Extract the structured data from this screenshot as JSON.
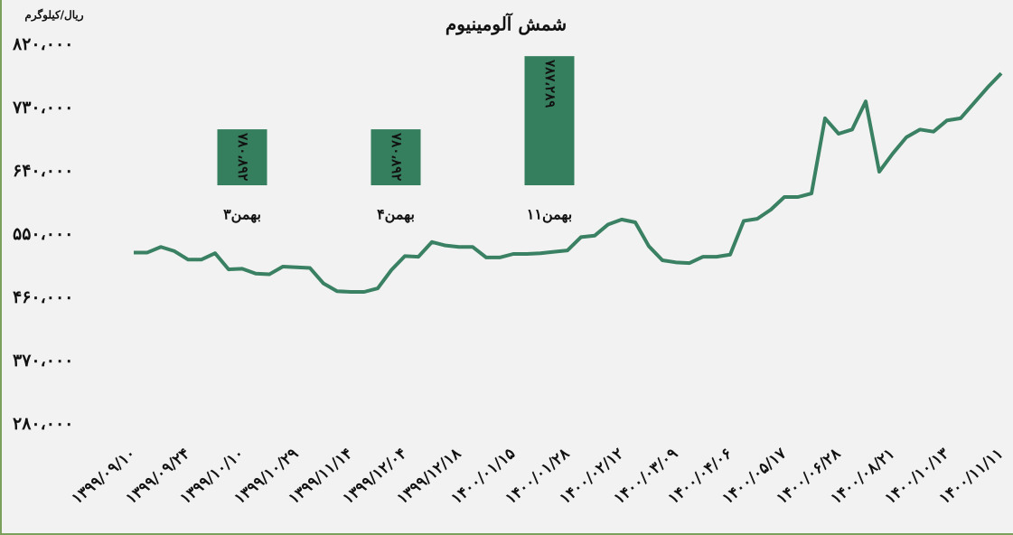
{
  "chart_data": [
    {
      "type": "line",
      "title": "شمش آلومینیوم",
      "y_label": "ریال/کیلوگرم",
      "color": "#3a8063",
      "categories": [
        "۱۳۹۹/۰۹/۱۰",
        null,
        null,
        null,
        "۱۳۹۹/۰۹/۲۴",
        null,
        null,
        null,
        "۱۳۹۹/۱۰/۱۰",
        null,
        null,
        null,
        "۱۳۹۹/۱۰/۲۹",
        null,
        null,
        null,
        "۱۳۹۹/۱۱/۱۴",
        null,
        null,
        null,
        "۱۳۹۹/۱۲/۰۴",
        null,
        null,
        null,
        "۱۳۹۹/۱۲/۱۸",
        null,
        null,
        null,
        "۱۴۰۰/۰۱/۱۵",
        null,
        null,
        null,
        "۱۴۰۰/۰۱/۲۸",
        null,
        null,
        null,
        "۱۴۰۰/۰۲/۱۲",
        null,
        null,
        null,
        "۱۴۰۰/۰۳/۰۹",
        null,
        null,
        null,
        "۱۴۰۰/۰۴/۰۶",
        null,
        null,
        null,
        "۱۴۰۰/۰۵/۱۷",
        null,
        null,
        null,
        "۱۴۰۰/۰۶/۲۸",
        null,
        null,
        null,
        "۱۴۰۰/۰۸/۲۱",
        null,
        null,
        null,
        "۱۴۰۰/۱۰/۱۳",
        null,
        null,
        null,
        "۱۴۰۰/۱۱/۱۱"
      ],
      "values": [
        525000,
        525000,
        533000,
        527000,
        515000,
        515000,
        524000,
        501000,
        502000,
        495000,
        494000,
        505000,
        504000,
        503000,
        481000,
        470000,
        469000,
        469000,
        474000,
        500000,
        520000,
        519000,
        540000,
        535000,
        533000,
        533000,
        518000,
        518000,
        523000,
        523000,
        524000,
        526000,
        528000,
        547000,
        549000,
        565000,
        572000,
        568000,
        534000,
        514000,
        511000,
        510000,
        519000,
        519000,
        522000,
        570000,
        573000,
        586000,
        604000,
        604000,
        609000,
        716000,
        694000,
        700000,
        740000,
        640000,
        666000,
        689000,
        700000,
        697000,
        713000,
        716000,
        738000,
        760000,
        780000
      ],
      "ylim": [
        280000,
        820000
      ],
      "yticks": [
        {
          "value": 280000,
          "label": "۲۸۰،۰۰۰"
        },
        {
          "value": 370000,
          "label": "۳۷۰،۰۰۰"
        },
        {
          "value": 460000,
          "label": "۴۶۰،۰۰۰"
        },
        {
          "value": 550000,
          "label": "۵۵۰،۰۰۰"
        },
        {
          "value": 640000,
          "label": "۶۴۰،۰۰۰"
        },
        {
          "value": 730000,
          "label": "۷۳۰،۰۰۰"
        },
        {
          "value": 820000,
          "label": "۸۲۰،۰۰۰"
        }
      ],
      "grid": false
    },
    {
      "type": "bar",
      "color": "#357f5e",
      "categories": [
        "۳بهمن",
        "۴بهمن",
        "۱۱بهمن"
      ],
      "values": [
        780892,
        780892,
        787289
      ],
      "value_labels": [
        "۷۸۰،۸۹۲",
        "۷۸۰،۸۹۲",
        "۷۸۷،۲۸۹"
      ],
      "ylim": [
        776000,
        787300
      ]
    }
  ]
}
